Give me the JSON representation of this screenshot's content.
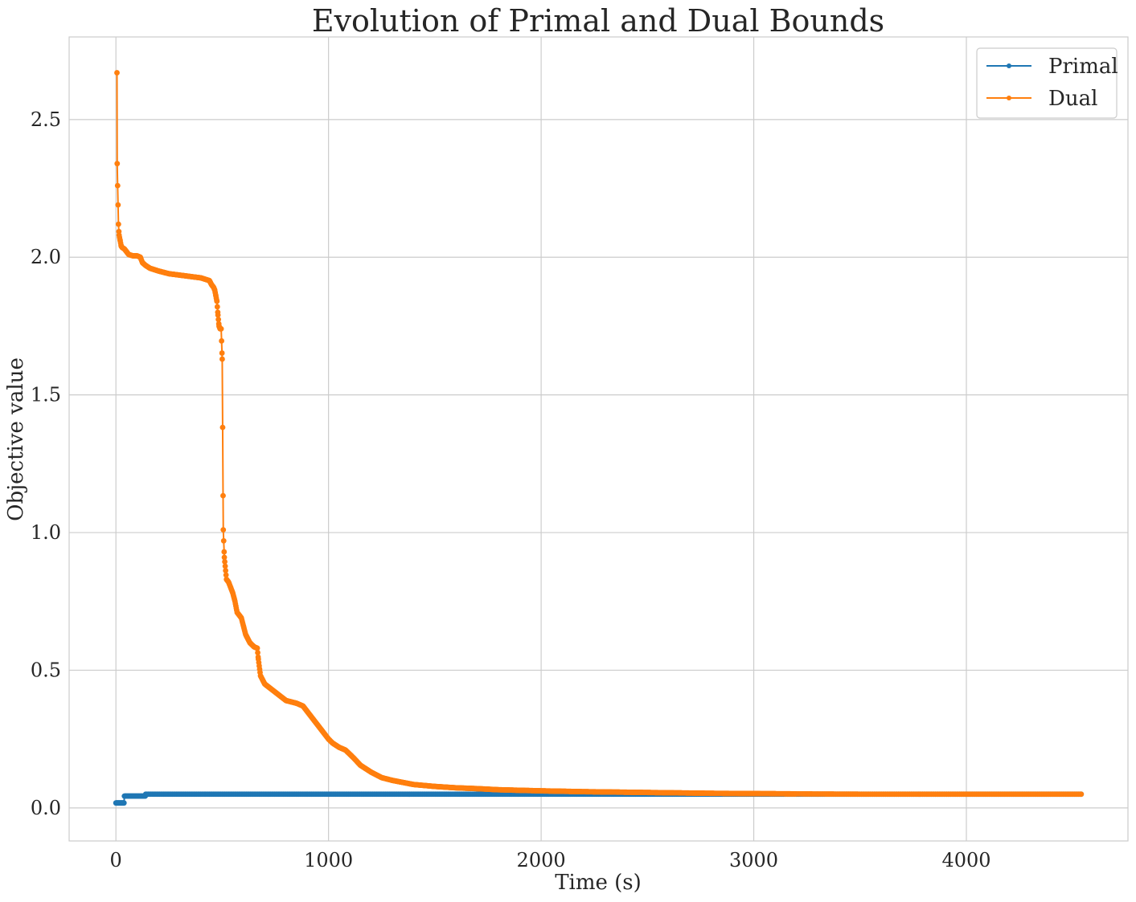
{
  "chart_data": {
    "type": "line",
    "title": "Evolution of Primal and Dual Bounds",
    "xlabel": "Time (s)",
    "ylabel": "Objective value",
    "xlim": [
      -220,
      4760
    ],
    "ylim": [
      -0.12,
      2.8
    ],
    "xticks": [
      0,
      1000,
      2000,
      3000,
      4000
    ],
    "xtick_labels": [
      "0",
      "1000",
      "2000",
      "3000",
      "4000"
    ],
    "yticks": [
      0.0,
      0.5,
      1.0,
      1.5,
      2.0,
      2.5
    ],
    "ytick_labels": [
      "0.0",
      "0.5",
      "1.0",
      "1.5",
      "2.0",
      "2.5"
    ],
    "grid": true,
    "legend_position": "top-right",
    "series": [
      {
        "name": "Primal",
        "color": "#1f77b4",
        "marker": "circle",
        "x": [
          0,
          30,
          40,
          130,
          140,
          4540
        ],
        "y": [
          0.018,
          0.018,
          0.043,
          0.043,
          0.05,
          0.05
        ]
      },
      {
        "name": "Dual",
        "color": "#ff7f0e",
        "marker": "circle",
        "x": [
          5,
          6,
          8,
          12,
          15,
          20,
          25,
          30,
          40,
          60,
          80,
          100,
          115,
          125,
          140,
          160,
          180,
          200,
          250,
          300,
          350,
          400,
          420,
          440,
          450,
          460,
          465,
          470,
          475,
          480,
          485,
          490,
          495,
          500,
          505,
          510,
          520,
          530,
          540,
          550,
          560,
          570,
          590,
          610,
          630,
          650,
          665,
          670,
          680,
          700,
          750,
          800,
          850,
          880,
          900,
          950,
          1000,
          1020,
          1050,
          1080,
          1100,
          1120,
          1150,
          1200,
          1250,
          1300,
          1400,
          1500,
          1600,
          1700,
          1800,
          1900,
          2000,
          2200,
          2400,
          2600,
          2800,
          3000,
          3200,
          3500,
          4000,
          4540
        ],
        "y": [
          2.67,
          2.34,
          2.26,
          2.12,
          2.08,
          2.06,
          2.04,
          2.035,
          2.03,
          2.01,
          2.005,
          2.005,
          2.0,
          1.98,
          1.97,
          1.96,
          1.955,
          1.95,
          1.94,
          1.935,
          1.93,
          1.925,
          1.92,
          1.915,
          1.9,
          1.89,
          1.88,
          1.86,
          1.84,
          1.79,
          1.75,
          1.74,
          1.74,
          1.63,
          1.01,
          0.91,
          0.83,
          0.82,
          0.8,
          0.78,
          0.75,
          0.71,
          0.69,
          0.63,
          0.6,
          0.585,
          0.58,
          0.54,
          0.48,
          0.45,
          0.42,
          0.39,
          0.38,
          0.37,
          0.35,
          0.3,
          0.25,
          0.235,
          0.22,
          0.21,
          0.195,
          0.18,
          0.155,
          0.13,
          0.11,
          0.1,
          0.085,
          0.078,
          0.073,
          0.07,
          0.066,
          0.064,
          0.062,
          0.059,
          0.057,
          0.055,
          0.053,
          0.052,
          0.051,
          0.05,
          0.05,
          0.05
        ]
      }
    ]
  }
}
